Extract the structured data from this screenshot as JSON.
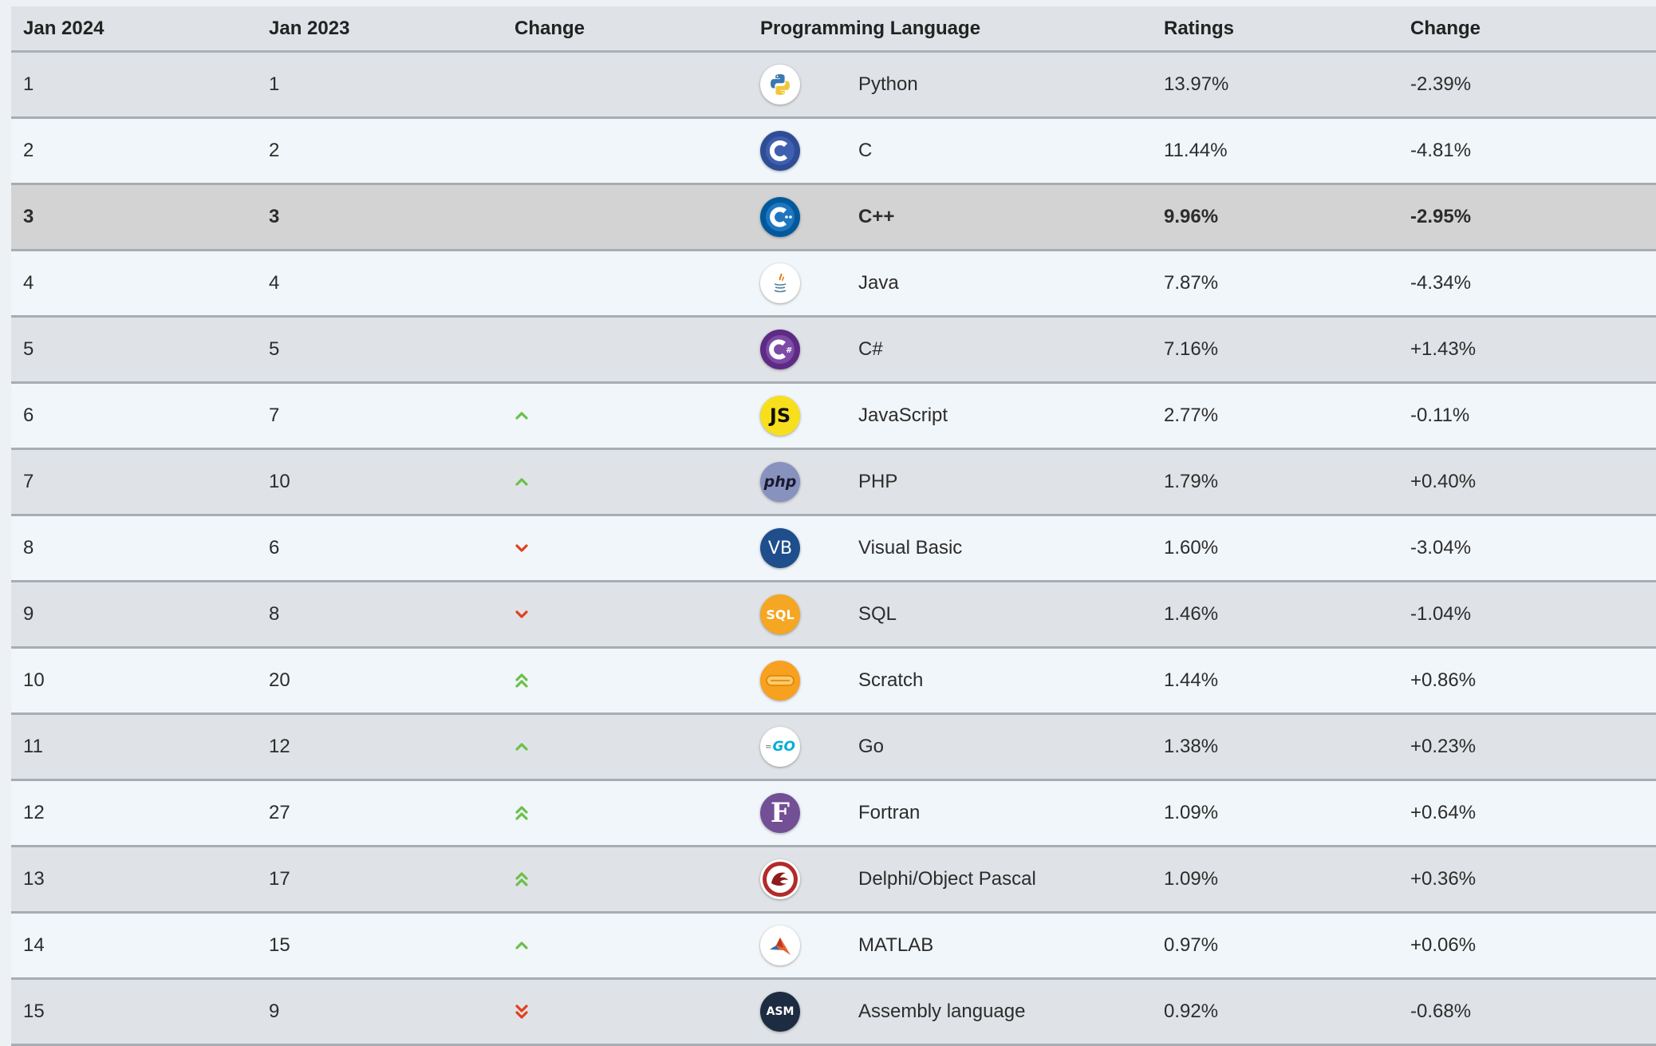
{
  "header": {
    "col_jan2024": "Jan 2024",
    "col_jan2023": "Jan 2023",
    "col_change": "Change",
    "col_language": "Programming Language",
    "col_ratings": "Ratings",
    "col_change2": "Change"
  },
  "rows": [
    {
      "rank2024": "1",
      "rank2023": "1",
      "trend": "none",
      "language": "Python",
      "logo": "python-logo-icon",
      "ratings": "13.97%",
      "change": "-2.39%"
    },
    {
      "rank2024": "2",
      "rank2023": "2",
      "trend": "none",
      "language": "C",
      "logo": "c-logo-icon",
      "ratings": "11.44%",
      "change": "-4.81%"
    },
    {
      "rank2024": "3",
      "rank2023": "3",
      "trend": "none",
      "language": "C++",
      "logo": "cpp-logo-icon",
      "ratings": "9.96%",
      "change": "-2.95%"
    },
    {
      "rank2024": "4",
      "rank2023": "4",
      "trend": "none",
      "language": "Java",
      "logo": "java-logo-icon",
      "ratings": "7.87%",
      "change": "-4.34%"
    },
    {
      "rank2024": "5",
      "rank2023": "5",
      "trend": "none",
      "language": "C#",
      "logo": "csharp-logo-icon",
      "ratings": "7.16%",
      "change": "+1.43%"
    },
    {
      "rank2024": "6",
      "rank2023": "7",
      "trend": "up",
      "language": "JavaScript",
      "logo": "javascript-logo-icon",
      "logo_text": "JS",
      "ratings": "2.77%",
      "change": "-0.11%"
    },
    {
      "rank2024": "7",
      "rank2023": "10",
      "trend": "up",
      "language": "PHP",
      "logo": "php-logo-icon",
      "logo_text": "php",
      "ratings": "1.79%",
      "change": "+0.40%"
    },
    {
      "rank2024": "8",
      "rank2023": "6",
      "trend": "down",
      "language": "Visual Basic",
      "logo": "visual-basic-logo-icon",
      "logo_text": "VB",
      "ratings": "1.60%",
      "change": "-3.04%"
    },
    {
      "rank2024": "9",
      "rank2023": "8",
      "trend": "down",
      "language": "SQL",
      "logo": "sql-logo-icon",
      "logo_text": "SQL",
      "ratings": "1.46%",
      "change": "-1.04%"
    },
    {
      "rank2024": "10",
      "rank2023": "20",
      "trend": "up2",
      "language": "Scratch",
      "logo": "scratch-logo-icon",
      "ratings": "1.44%",
      "change": "+0.86%"
    },
    {
      "rank2024": "11",
      "rank2023": "12",
      "trend": "up",
      "language": "Go",
      "logo": "go-logo-icon",
      "logo_text": "GO",
      "ratings": "1.38%",
      "change": "+0.23%"
    },
    {
      "rank2024": "12",
      "rank2023": "27",
      "trend": "up2",
      "language": "Fortran",
      "logo": "fortran-logo-icon",
      "logo_text": "F",
      "ratings": "1.09%",
      "change": "+0.64%"
    },
    {
      "rank2024": "13",
      "rank2023": "17",
      "trend": "up2",
      "language": "Delphi/Object Pascal",
      "logo": "delphi-logo-icon",
      "ratings": "1.09%",
      "change": "+0.36%"
    },
    {
      "rank2024": "14",
      "rank2023": "15",
      "trend": "up",
      "language": "MATLAB",
      "logo": "matlab-logo-icon",
      "ratings": "0.97%",
      "change": "+0.06%"
    },
    {
      "rank2024": "15",
      "rank2023": "9",
      "trend": "down2",
      "language": "Assembly language",
      "logo": "assembly-logo-icon",
      "logo_text": "ASM",
      "ratings": "0.92%",
      "change": "-0.68%"
    }
  ],
  "colors": {
    "up_arrow": "#6cc04a",
    "down_arrow": "#e2401c",
    "highlight_row": "#d3d3d3"
  }
}
